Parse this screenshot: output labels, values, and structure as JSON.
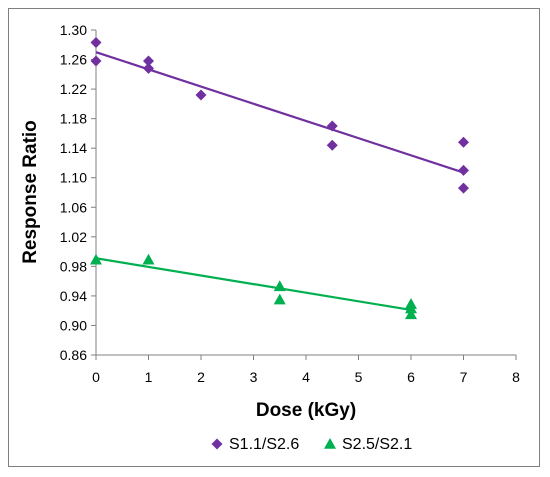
{
  "chart_data": {
    "type": "scatter",
    "title": "",
    "xlabel": "Dose (kGy)",
    "ylabel": "Response Ratio",
    "xlim": [
      0,
      8
    ],
    "ylim": [
      0.86,
      1.3
    ],
    "x_ticks": [
      "0",
      "1",
      "2",
      "3",
      "4",
      "5",
      "6",
      "7",
      "8"
    ],
    "y_ticks": [
      "0.86",
      "0.90",
      "0.94",
      "0.98",
      "1.02",
      "1.06",
      "1.10",
      "1.14",
      "1.18",
      "1.22",
      "1.26",
      "1.30"
    ],
    "grid": false,
    "legend_position": "bottom",
    "series": [
      {
        "name": "S1.1/S2.6",
        "marker": "diamond",
        "color": "#7030a0",
        "points": [
          [
            0,
            1.283
          ],
          [
            0,
            1.258
          ],
          [
            1,
            1.258
          ],
          [
            1,
            1.248
          ],
          [
            2,
            1.212
          ],
          [
            4.5,
            1.17
          ],
          [
            4.5,
            1.144
          ],
          [
            7,
            1.148
          ],
          [
            7,
            1.11
          ],
          [
            7,
            1.086
          ]
        ],
        "trendline": [
          [
            0,
            1.27
          ],
          [
            7,
            1.107
          ]
        ]
      },
      {
        "name": "S2.5/S2.1",
        "marker": "triangle",
        "color": "#00b050",
        "points": [
          [
            0,
            0.989
          ],
          [
            1,
            0.989
          ],
          [
            3.5,
            0.953
          ],
          [
            3.5,
            0.935
          ],
          [
            6,
            0.929
          ],
          [
            6,
            0.923
          ],
          [
            6,
            0.915
          ]
        ],
        "trendline": [
          [
            0,
            0.991
          ],
          [
            6,
            0.921
          ]
        ]
      }
    ]
  }
}
